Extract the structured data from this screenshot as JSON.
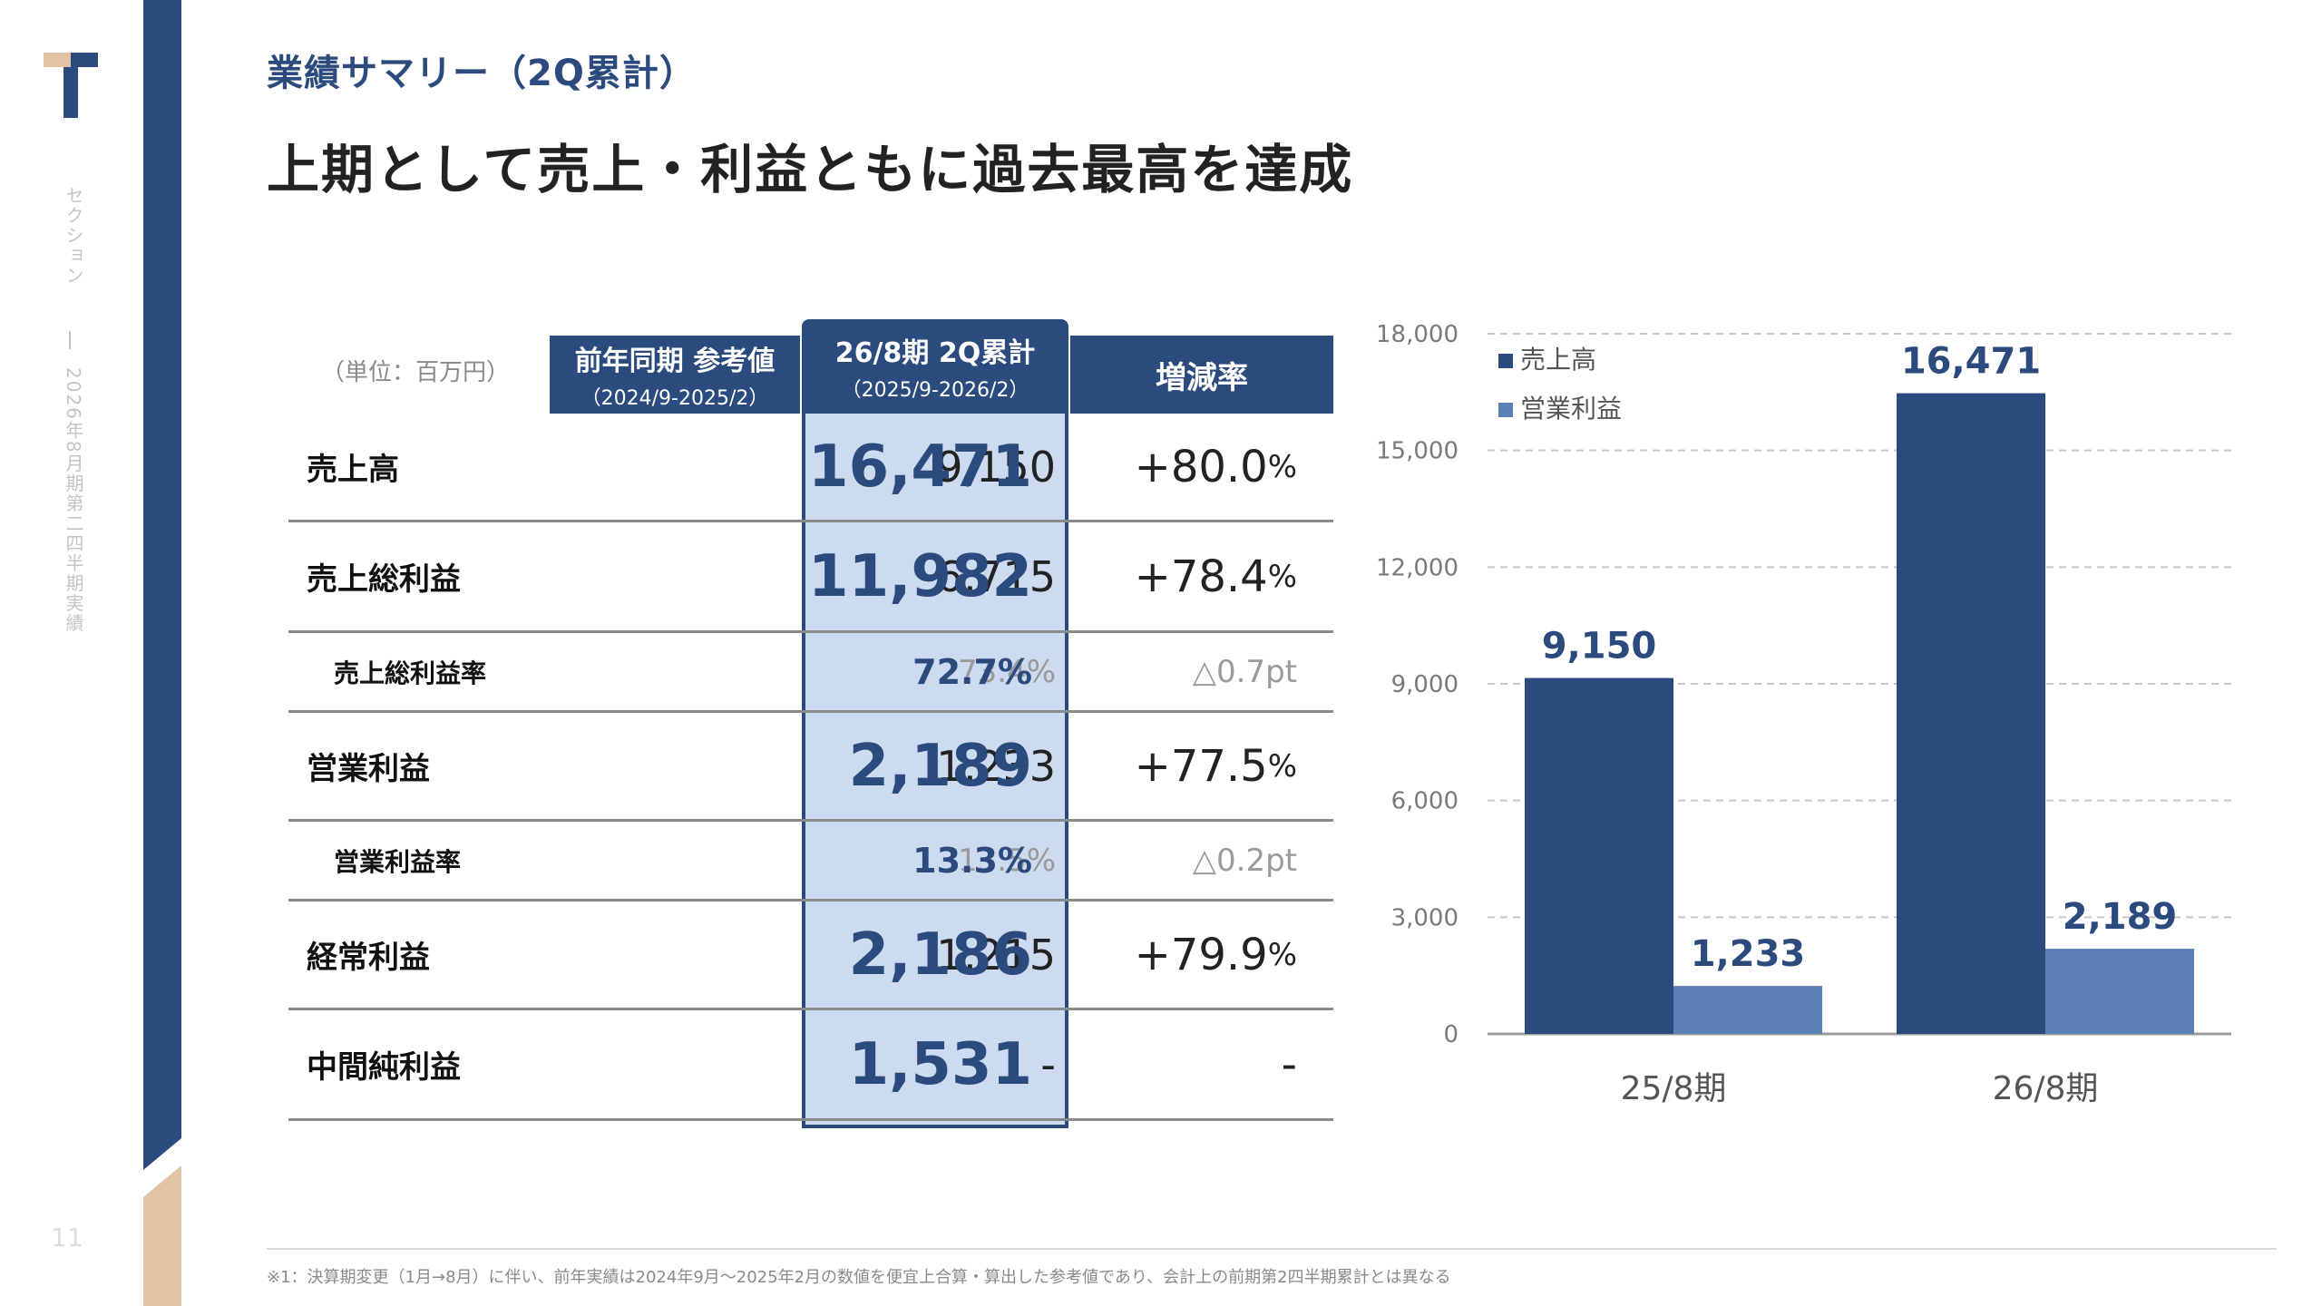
{
  "rail": {
    "section": "セクション",
    "subtitle": "2026年8月期第二四半期実績",
    "page_number": "11"
  },
  "header": {
    "section_label": "業績サマリー（2Q累計）",
    "headline": "上期として売上・利益ともに過去最高を達成"
  },
  "table": {
    "unit_note": "（単位：百万円）",
    "columns": {
      "prev_title": "前年同期 参考値",
      "prev_period": "（2024/9-2025/2）",
      "cur_title": "26/8期 2Q累計",
      "cur_period": "（2025/9-2026/2）",
      "chg_title": "増減率"
    },
    "rows": [
      {
        "label": "売上高",
        "prev": "9,150",
        "cur": "16,471",
        "chg": "+80.0",
        "chg_unit": "%"
      },
      {
        "label": "売上総利益",
        "prev": "6,715",
        "cur": "11,982",
        "chg": "+78.4",
        "chg_unit": "%"
      },
      {
        "label": "売上総利益率",
        "prev": "73.4%",
        "cur": "72.7%",
        "chg": "△0.7pt",
        "chg_unit": ""
      },
      {
        "label": "営業利益",
        "prev": "1,233",
        "cur": "2,189",
        "chg": "+77.5",
        "chg_unit": "%"
      },
      {
        "label": "営業利益率",
        "prev": "13.5%",
        "cur": "13.3%",
        "chg": "△0.2pt",
        "chg_unit": ""
      },
      {
        "label": "経常利益",
        "prev": "1,215",
        "cur": "2,186",
        "chg": "+79.9",
        "chg_unit": "%"
      },
      {
        "label": "中間純利益",
        "prev": "-",
        "cur": "1,531",
        "chg": "-",
        "chg_unit": ""
      }
    ]
  },
  "colors": {
    "navy": "#2b4a7e",
    "light_blue": "#5b80b4",
    "highlight": "#cddbf0",
    "beige": "#e2c4a5"
  },
  "chart_data": {
    "type": "bar",
    "categories": [
      "25/8期",
      "26/8期"
    ],
    "series": [
      {
        "name": "売上高",
        "values": [
          9150,
          16471
        ],
        "labels": [
          "9,150",
          "16,471"
        ],
        "color": "#2b4a7e"
      },
      {
        "name": "営業利益",
        "values": [
          1233,
          2189
        ],
        "labels": [
          "1,233",
          "2,189"
        ],
        "color": "#5b80b4"
      }
    ],
    "ylim": [
      0,
      18000
    ],
    "yticks": [
      0,
      3000,
      6000,
      9000,
      12000,
      15000,
      18000
    ],
    "ytick_labels": [
      "0",
      "3,000",
      "6,000",
      "9,000",
      "12,000",
      "15,000",
      "18,000"
    ],
    "grid": true,
    "legend": "top-left",
    "title": "",
    "xlabel": "",
    "ylabel": ""
  },
  "footnote": "※1：決算期変更（1月→8月）に伴い、前年実績は2024年9月～2025年2月の数値を便宜上合算・算出した参考値であり、会計上の前期第2四半期累計とは異なる"
}
